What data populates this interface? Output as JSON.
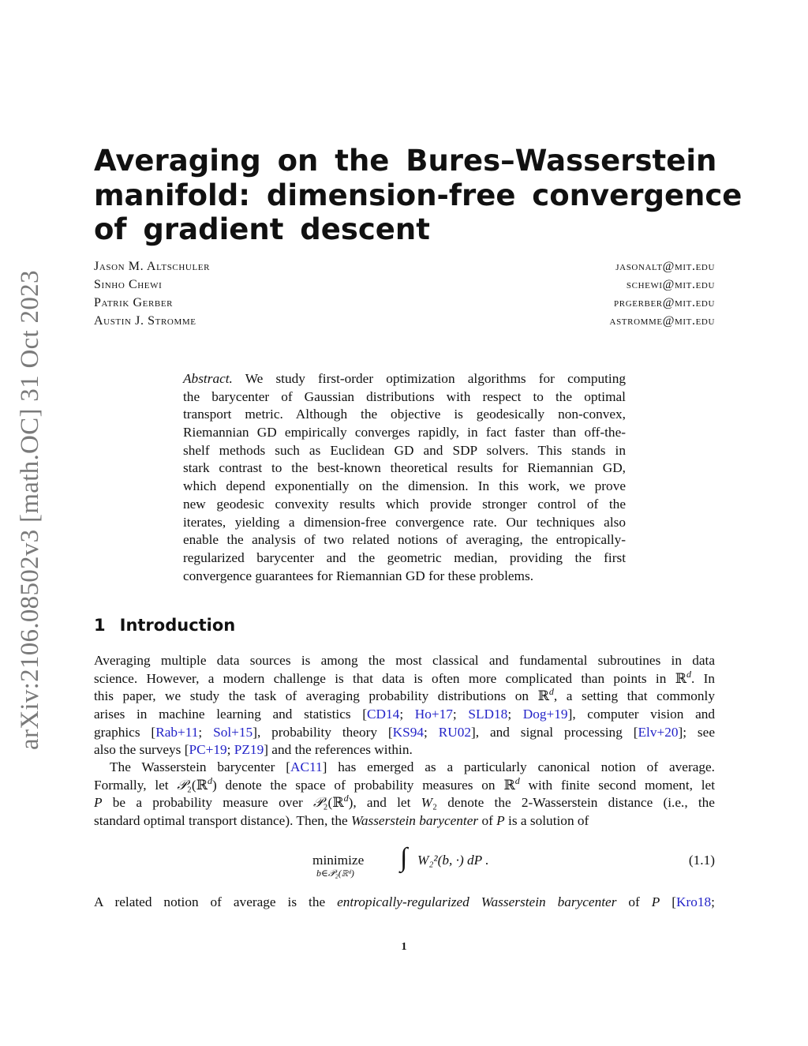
{
  "arxiv_stamp": "arXiv:2106.08502v3  [math.OC]  31 Oct 2023",
  "title_lines": [
    "Averaging on the Bures–Wasserstein",
    "manifold: dimension-free convergence",
    "of gradient descent"
  ],
  "authors": [
    {
      "name": "Jason M. Altschuler",
      "email": "jasonalt@mit.edu"
    },
    {
      "name": "Sinho Chewi",
      "email": "schewi@mit.edu"
    },
    {
      "name": "Patrik Gerber",
      "email": "prgerber@mit.edu"
    },
    {
      "name": "Austin J. Stromme",
      "email": "astromme@mit.edu"
    }
  ],
  "abstract": [
    [
      {
        "t": "Abstract.",
        "s": "it"
      },
      {
        "t": " We study first-order optimization algorithms for computing"
      }
    ],
    [
      {
        "t": "the barycenter of Gaussian distributions with respect to the optimal"
      }
    ],
    [
      {
        "t": "transport metric. Although the objective is geodesically non-convex,"
      }
    ],
    [
      {
        "t": "Riemannian GD empirically converges rapidly, in fact faster than off-the-"
      }
    ],
    [
      {
        "t": "shelf methods such as Euclidean GD and SDP solvers. This stands in"
      }
    ],
    [
      {
        "t": "stark contrast to the best-known theoretical results for Riemannian GD,"
      }
    ],
    [
      {
        "t": "which depend exponentially on the dimension. In this work, we prove"
      }
    ],
    [
      {
        "t": "new geodesic convexity results which provide stronger control of the"
      }
    ],
    [
      {
        "t": "iterates, yielding a dimension-free convergence rate. Our techniques also"
      }
    ],
    [
      {
        "t": "enable the analysis of two related notions of averaging, the entropically-"
      }
    ],
    [
      {
        "t": "regularized barycenter and the geometric median, providing the first"
      }
    ],
    [
      {
        "t": "convergence guarantees for Riemannian GD for these problems."
      }
    ]
  ],
  "section": {
    "number": "1",
    "title": "Introduction"
  },
  "intro": [
    [
      {
        "t": "Averaging multiple data sources is among the most classical and fundamental subroutines in data"
      }
    ],
    [
      {
        "t": "science. However, a modern challenge is that data is often more complicated than points in ℝ"
      },
      {
        "t": "d",
        "s": "sup"
      },
      {
        "t": ". In"
      }
    ],
    [
      {
        "t": "this paper, we study the task of averaging probability distributions on ℝ"
      },
      {
        "t": "d",
        "s": "sup"
      },
      {
        "t": ", a setting that commonly"
      }
    ],
    [
      {
        "t": "arises in machine learning and statistics ["
      },
      {
        "t": "CD14",
        "s": "cite"
      },
      {
        "t": "; "
      },
      {
        "t": "Ho+17",
        "s": "cite"
      },
      {
        "t": "; "
      },
      {
        "t": "SLD18",
        "s": "cite"
      },
      {
        "t": "; "
      },
      {
        "t": "Dog+19",
        "s": "cite"
      },
      {
        "t": "], computer vision and"
      }
    ],
    [
      {
        "t": "graphics ["
      },
      {
        "t": "Rab+11",
        "s": "cite"
      },
      {
        "t": "; "
      },
      {
        "t": "Sol+15",
        "s": "cite"
      },
      {
        "t": "], probability theory ["
      },
      {
        "t": "KS94",
        "s": "cite"
      },
      {
        "t": "; "
      },
      {
        "t": "RU02",
        "s": "cite"
      },
      {
        "t": "], and signal processing ["
      },
      {
        "t": "Elv+20",
        "s": "cite"
      },
      {
        "t": "]; see"
      }
    ],
    [
      {
        "t": "also the surveys ["
      },
      {
        "t": "PC+19",
        "s": "cite"
      },
      {
        "t": "; "
      },
      {
        "t": "PZ19",
        "s": "cite"
      },
      {
        "t": "] and the references within."
      }
    ]
  ],
  "para2": [
    [
      {
        "t": "The Wasserstein barycenter ["
      },
      {
        "t": "AC11",
        "s": "cite"
      },
      {
        "t": "] has emerged as a particularly canonical notion of average."
      }
    ],
    [
      {
        "t": "Formally, let "
      },
      {
        "t": "𝒫",
        "s": "it"
      },
      {
        "t": "₂(ℝ"
      },
      {
        "t": "d",
        "s": "sup"
      },
      {
        "t": ") denote the space of probability measures on ℝ"
      },
      {
        "t": "d",
        "s": "sup"
      },
      {
        "t": " with finite second moment, let"
      }
    ],
    [
      {
        "t": "P",
        "s": "it"
      },
      {
        "t": " be a probability measure over "
      },
      {
        "t": "𝒫",
        "s": "it"
      },
      {
        "t": "₂(ℝ"
      },
      {
        "t": "d",
        "s": "sup"
      },
      {
        "t": "), and let "
      },
      {
        "t": "W",
        "s": "it"
      },
      {
        "t": "₂ denote the 2-Wasserstein distance (i.e., the"
      }
    ],
    [
      {
        "t": "standard optimal transport distance). Then, the "
      },
      {
        "t": "Wasserstein barycenter",
        "s": "it"
      },
      {
        "t": " of "
      },
      {
        "t": "P",
        "s": "it"
      },
      {
        "t": " is a solution of"
      }
    ]
  ],
  "equation": {
    "operator": "minimize",
    "subscript": "b∈𝒫₂(ℝᵈ)",
    "integral": "∫",
    "expression": "W₂²(b, ·) dP .",
    "number": "(1.1)"
  },
  "para3": [
    [
      {
        "t": "A related notion of average is the "
      },
      {
        "t": "entropically-regularized Wasserstein barycenter",
        "s": "it"
      },
      {
        "t": " of "
      },
      {
        "t": "P",
        "s": "it"
      },
      {
        "t": " ["
      },
      {
        "t": "Kro18",
        "s": "cite"
      },
      {
        "t": ";"
      }
    ]
  ],
  "page_number": "1",
  "colors": {
    "citation": "#2323c8",
    "stamp": "#7a7a7a"
  }
}
